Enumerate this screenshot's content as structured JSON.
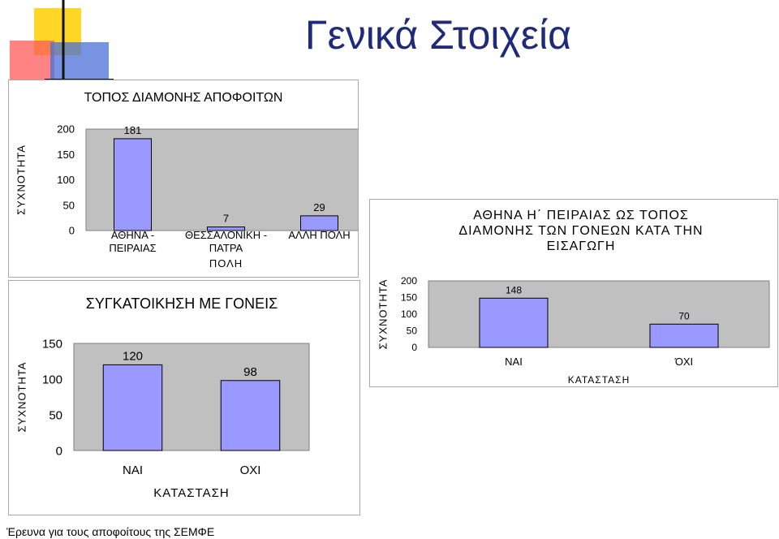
{
  "slide": {
    "title": "Γενικά Στοιχεία",
    "footer": "Έρευνα για τους αποφοίτους της ΣΕΜΦΕ"
  },
  "colors": {
    "bar": "#9999ff",
    "plot_bg": "#c0c0c0",
    "title": "#1f2a78"
  },
  "chart_data": [
    {
      "type": "bar",
      "title": "ΤΟΠΟΣ ΔΙΑΜΟΝΗΣ ΑΠΟΦΟΙΤΩΝ",
      "categories": [
        "ΑΘΗΝΑ - ΠΕΙΡΑΙΑΣ",
        "ΘΕΣΣΑΛΟΝΙΚΗ - ΠΑΤΡΑ",
        "ΑΛΛΗ ΠΟΛΗ"
      ],
      "values": [
        181,
        7,
        29
      ],
      "xlabel": "ΠΟΛΗ",
      "ylabel": "ΣΥΧΝΟΤΗΤΑ",
      "ylim": [
        0,
        200
      ],
      "yticks": [
        0,
        50,
        100,
        150,
        200
      ],
      "grid": false
    },
    {
      "type": "bar",
      "title": "ΣΥΓΚΑΤΟΙΚΗΣΗ ΜΕ ΓΟΝΕΙΣ",
      "categories": [
        "ΝΑΙ",
        "ΟΧΙ"
      ],
      "values": [
        120,
        98
      ],
      "xlabel": "ΚΑΤΑΣΤΑΣΗ",
      "ylabel": "ΣΥΧΝΟΤΗΤΑ",
      "ylim": [
        0,
        150
      ],
      "yticks": [
        0,
        50,
        100,
        150
      ],
      "grid": false
    },
    {
      "type": "bar",
      "title": "ΑΘΗΝΑ Η΄ ΠΕΙΡΑΙΑΣ ΩΣ ΤΟΠΟΣ ΔΙΑΜΟΝΗΣ ΤΩΝ ΓΟΝΕΩΝ ΚΑΤΑ ΤΗΝ ΕΙΣΑΓΩΓΗ",
      "categories": [
        "ΝΑΙ",
        "ΌΧΙ"
      ],
      "values": [
        148,
        70
      ],
      "xlabel": "ΚΑΤΑΣΤΑΣΗ",
      "ylabel": "ΣΥΧΝΟΤΗΤΑ",
      "ylim": [
        0,
        200
      ],
      "yticks": [
        0,
        50,
        100,
        150,
        200
      ],
      "grid": false
    }
  ]
}
